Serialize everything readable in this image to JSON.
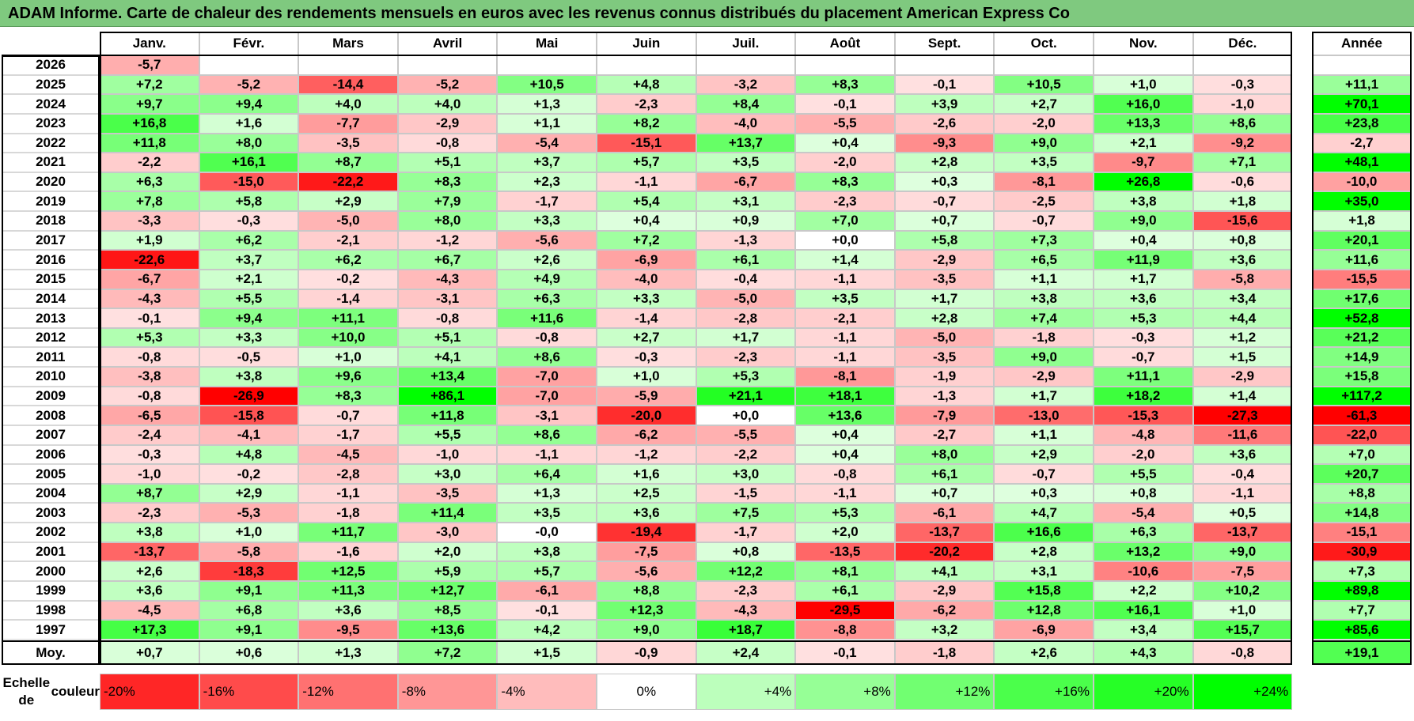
{
  "title": "ADAM Informe. Carte de chaleur des rendements mensuels en euros avec les revenus connus distribués du placement American Express Co",
  "chart_data": {
    "type": "heatmap",
    "columns": [
      "Janv.",
      "Févr.",
      "Mars",
      "Avril",
      "Mai",
      "Juin",
      "Juil.",
      "Août",
      "Sept.",
      "Oct.",
      "Nov.",
      "Déc."
    ],
    "year_column_label": "Année",
    "rows": [
      {
        "year": "2026",
        "months": [
          "-5,7",
          "",
          "",
          "",
          "",
          "",
          "",
          "",
          "",
          "",
          "",
          ""
        ],
        "annual": ""
      },
      {
        "year": "2025",
        "months": [
          "+7,2",
          "-5,2",
          "-14,4",
          "-5,2",
          "+10,5",
          "+4,8",
          "-3,2",
          "+8,3",
          "-0,1",
          "+10,5",
          "+1,0",
          "-0,3"
        ],
        "annual": "+11,1"
      },
      {
        "year": "2024",
        "months": [
          "+9,7",
          "+9,4",
          "+4,0",
          "+4,0",
          "+1,3",
          "-2,3",
          "+8,4",
          "-0,1",
          "+3,9",
          "+2,7",
          "+16,0",
          "-1,0"
        ],
        "annual": "+70,1"
      },
      {
        "year": "2023",
        "months": [
          "+16,8",
          "+1,6",
          "-7,7",
          "-2,9",
          "+1,1",
          "+8,2",
          "-4,0",
          "-5,5",
          "-2,6",
          "-2,0",
          "+13,3",
          "+8,6"
        ],
        "annual": "+23,8"
      },
      {
        "year": "2022",
        "months": [
          "+11,8",
          "+8,0",
          "-3,5",
          "-0,8",
          "-5,4",
          "-15,1",
          "+13,7",
          "+0,4",
          "-9,3",
          "+9,0",
          "+2,1",
          "-9,2"
        ],
        "annual": "-2,7"
      },
      {
        "year": "2021",
        "months": [
          "-2,2",
          "+16,1",
          "+8,7",
          "+5,1",
          "+3,7",
          "+5,7",
          "+3,5",
          "-2,0",
          "+2,8",
          "+3,5",
          "-9,7",
          "+7,1"
        ],
        "annual": "+48,1"
      },
      {
        "year": "2020",
        "months": [
          "+6,3",
          "-15,0",
          "-22,2",
          "+8,3",
          "+2,3",
          "-1,1",
          "-6,7",
          "+8,3",
          "+0,3",
          "-8,1",
          "+26,8",
          "-0,6"
        ],
        "annual": "-10,0"
      },
      {
        "year": "2019",
        "months": [
          "+7,8",
          "+5,8",
          "+2,9",
          "+7,9",
          "-1,7",
          "+5,4",
          "+3,1",
          "-2,3",
          "-0,7",
          "-2,5",
          "+3,8",
          "+1,8"
        ],
        "annual": "+35,0"
      },
      {
        "year": "2018",
        "months": [
          "-3,3",
          "-0,3",
          "-5,0",
          "+8,0",
          "+3,3",
          "+0,4",
          "+0,9",
          "+7,0",
          "+0,7",
          "-0,7",
          "+9,0",
          "-15,6"
        ],
        "annual": "+1,8"
      },
      {
        "year": "2017",
        "months": [
          "+1,9",
          "+6,2",
          "-2,1",
          "-1,2",
          "-5,6",
          "+7,2",
          "-1,3",
          "+0,0",
          "+5,8",
          "+7,3",
          "+0,4",
          "+0,8"
        ],
        "annual": "+20,1"
      },
      {
        "year": "2016",
        "months": [
          "-22,6",
          "+3,7",
          "+6,2",
          "+6,7",
          "+2,6",
          "-6,9",
          "+6,1",
          "+1,4",
          "-2,9",
          "+6,5",
          "+11,9",
          "+3,6"
        ],
        "annual": "+11,6"
      },
      {
        "year": "2015",
        "months": [
          "-6,7",
          "+2,1",
          "-0,2",
          "-4,3",
          "+4,9",
          "-4,0",
          "-0,4",
          "-1,1",
          "-3,5",
          "+1,1",
          "+1,7",
          "-5,8"
        ],
        "annual": "-15,5"
      },
      {
        "year": "2014",
        "months": [
          "-4,3",
          "+5,5",
          "-1,4",
          "-3,1",
          "+6,3",
          "+3,3",
          "-5,0",
          "+3,5",
          "+1,7",
          "+3,8",
          "+3,6",
          "+3,4"
        ],
        "annual": "+17,6"
      },
      {
        "year": "2013",
        "months": [
          "-0,1",
          "+9,4",
          "+11,1",
          "-0,8",
          "+11,6",
          "-1,4",
          "-2,8",
          "-2,1",
          "+2,8",
          "+7,4",
          "+5,3",
          "+4,4"
        ],
        "annual": "+52,8"
      },
      {
        "year": "2012",
        "months": [
          "+5,3",
          "+3,3",
          "+10,0",
          "+5,1",
          "-0,8",
          "+2,7",
          "+1,7",
          "-1,1",
          "-5,0",
          "-1,8",
          "-0,3",
          "+1,2"
        ],
        "annual": "+21,2"
      },
      {
        "year": "2011",
        "months": [
          "-0,8",
          "-0,5",
          "+1,0",
          "+4,1",
          "+8,6",
          "-0,3",
          "-2,3",
          "-1,1",
          "-3,5",
          "+9,0",
          "-0,7",
          "+1,5"
        ],
        "annual": "+14,9"
      },
      {
        "year": "2010",
        "months": [
          "-3,8",
          "+3,8",
          "+9,6",
          "+13,4",
          "-7,0",
          "+1,0",
          "+5,3",
          "-8,1",
          "-1,9",
          "-2,9",
          "+11,1",
          "-2,9"
        ],
        "annual": "+15,8"
      },
      {
        "year": "2009",
        "months": [
          "-0,8",
          "-26,9",
          "+8,3",
          "+86,1",
          "-7,0",
          "-5,9",
          "+21,1",
          "+18,1",
          "-1,3",
          "+1,7",
          "+18,2",
          "+1,4"
        ],
        "annual": "+117,2"
      },
      {
        "year": "2008",
        "months": [
          "-6,5",
          "-15,8",
          "-0,7",
          "+11,8",
          "-3,1",
          "-20,0",
          "+0,0",
          "+13,6",
          "-7,9",
          "-13,0",
          "-15,3",
          "-27,3"
        ],
        "annual": "-61,3"
      },
      {
        "year": "2007",
        "months": [
          "-2,4",
          "-4,1",
          "-1,7",
          "+5,5",
          "+8,6",
          "-6,2",
          "-5,5",
          "+0,4",
          "-2,7",
          "+1,1",
          "-4,8",
          "-11,6"
        ],
        "annual": "-22,0"
      },
      {
        "year": "2006",
        "months": [
          "-0,3",
          "+4,8",
          "-4,5",
          "-1,0",
          "-1,1",
          "-1,2",
          "-2,2",
          "+0,4",
          "+8,0",
          "+2,9",
          "-2,0",
          "+3,6"
        ],
        "annual": "+7,0"
      },
      {
        "year": "2005",
        "months": [
          "-1,0",
          "-0,2",
          "-2,8",
          "+3,0",
          "+6,4",
          "+1,6",
          "+3,0",
          "-0,8",
          "+6,1",
          "-0,7",
          "+5,5",
          "-0,4"
        ],
        "annual": "+20,7"
      },
      {
        "year": "2004",
        "months": [
          "+8,7",
          "+2,9",
          "-1,1",
          "-3,5",
          "+1,3",
          "+2,5",
          "-1,5",
          "-1,1",
          "+0,7",
          "+0,3",
          "+0,8",
          "-1,1"
        ],
        "annual": "+8,8"
      },
      {
        "year": "2003",
        "months": [
          "-2,3",
          "-5,3",
          "-1,8",
          "+11,4",
          "+3,5",
          "+3,6",
          "+7,5",
          "+5,3",
          "-6,1",
          "+4,7",
          "-5,4",
          "+0,5"
        ],
        "annual": "+14,8"
      },
      {
        "year": "2002",
        "months": [
          "+3,8",
          "+1,0",
          "+11,7",
          "-3,0",
          "-0,0",
          "-19,4",
          "-1,7",
          "+2,0",
          "-13,7",
          "+16,6",
          "+6,3",
          "-13,7"
        ],
        "annual": "-15,1"
      },
      {
        "year": "2001",
        "months": [
          "-13,7",
          "-5,8",
          "-1,6",
          "+2,0",
          "+3,8",
          "-7,5",
          "+0,8",
          "-13,5",
          "-20,2",
          "+2,8",
          "+13,2",
          "+9,0"
        ],
        "annual": "-30,9"
      },
      {
        "year": "2000",
        "months": [
          "+2,6",
          "-18,3",
          "+12,5",
          "+5,9",
          "+5,7",
          "-5,6",
          "+12,2",
          "+8,1",
          "+4,1",
          "+3,1",
          "-10,6",
          "-7,5"
        ],
        "annual": "+7,3"
      },
      {
        "year": "1999",
        "months": [
          "+3,6",
          "+9,1",
          "+11,3",
          "+12,7",
          "-6,1",
          "+8,8",
          "-2,3",
          "+6,1",
          "-2,9",
          "+15,8",
          "+2,2",
          "+10,2"
        ],
        "annual": "+89,8"
      },
      {
        "year": "1998",
        "months": [
          "-4,5",
          "+6,8",
          "+3,6",
          "+8,5",
          "-0,1",
          "+12,3",
          "-4,3",
          "-29,5",
          "-6,2",
          "+12,8",
          "+16,1",
          "+1,0"
        ],
        "annual": "+7,7"
      },
      {
        "year": "1997",
        "months": [
          "+17,3",
          "+9,1",
          "-9,5",
          "+13,6",
          "+4,2",
          "+9,0",
          "+18,7",
          "-8,8",
          "+3,2",
          "-6,9",
          "+3,4",
          "+15,7"
        ],
        "annual": "+85,6"
      }
    ],
    "average": {
      "label": "Moy.",
      "months": [
        "+0,7",
        "+0,6",
        "+1,3",
        "+7,2",
        "+1,5",
        "-0,9",
        "+2,4",
        "-0,1",
        "-1,8",
        "+2,6",
        "+4,3",
        "-0,8"
      ],
      "annual": "+19,1"
    },
    "scale": {
      "label_line1": "Echelle de",
      "label_line2": "couleur",
      "steps": [
        {
          "label": "-20%",
          "value": -20
        },
        {
          "label": "-16%",
          "value": -16
        },
        {
          "label": "-12%",
          "value": -12
        },
        {
          "label": "-8%",
          "value": -8
        },
        {
          "label": "-4%",
          "value": -4
        },
        {
          "label": "0%",
          "value": 0
        },
        {
          "label": "+4%",
          "value": 4
        },
        {
          "label": "+8%",
          "value": 8
        },
        {
          "label": "+12%",
          "value": 12
        },
        {
          "label": "+16%",
          "value": 16
        },
        {
          "label": "+20%",
          "value": 20
        },
        {
          "label": "+24%",
          "value": 24
        }
      ]
    },
    "colors": {
      "negative_max": "#ff0000",
      "neutral": "#ffffff",
      "positive_max": "#00ff00",
      "title_bar": "#7fc97f"
    }
  }
}
